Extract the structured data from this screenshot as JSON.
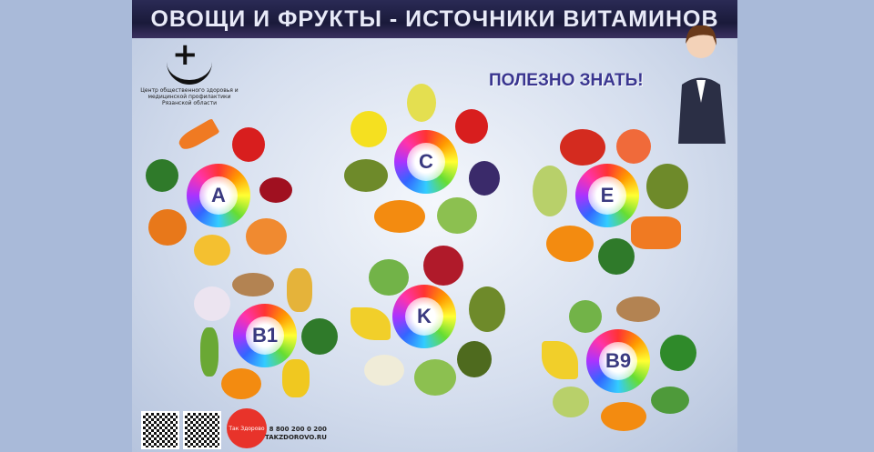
{
  "title": "ОВОЩИ И ФРУКТЫ - ИСТОЧНИКИ ВИТАМИНОВ",
  "logo": {
    "text": "Центр общественного здоровья и медицинской профилактики Рязанской области"
  },
  "callout": "ПОЛЕЗНО ЗНАТЬ!",
  "vitamins": [
    "A",
    "C",
    "E",
    "B1",
    "K",
    "B9"
  ],
  "footer": {
    "badge": "Так Здорово",
    "phone": "8 800 200 0 200",
    "site": "TAKZDOROVO.RU"
  }
}
